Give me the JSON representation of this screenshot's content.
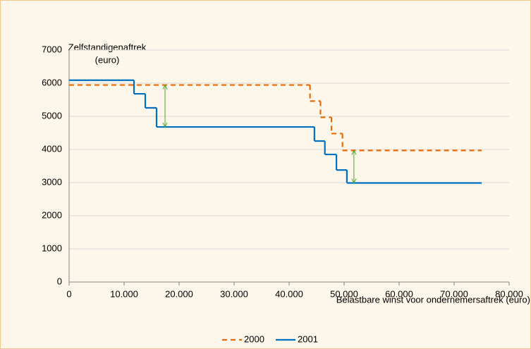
{
  "chart_data": {
    "type": "step",
    "ylabel": [
      "Zelfstandigenaftrek",
      "(euro)"
    ],
    "xlabel": "Belastbare winst voor ondernemersaftrek (euro)",
    "series": [
      {
        "name": "2000",
        "color": "#e46c0a",
        "dash": true,
        "x": [
          0,
          43800,
          45700,
          47700,
          49700,
          75000
        ],
        "values": [
          5945,
          5460,
          4970,
          4480,
          3970,
          3970
        ]
      },
      {
        "name": "2001",
        "color": "#0070c0",
        "dash": false,
        "x": [
          0,
          11800,
          13850,
          15900,
          44600,
          46500,
          48600,
          50500,
          75000
        ],
        "values": [
          6090,
          5680,
          5255,
          4680,
          4255,
          3850,
          3380,
          2990,
          2990
        ]
      }
    ],
    "xlim": [
      0,
      80000
    ],
    "xticks": [
      0,
      {
        "value": 10000,
        "label": "10.000"
      },
      {
        "value": 20000,
        "label": "20.000"
      },
      {
        "value": 30000,
        "label": "30.000"
      },
      {
        "value": 40000,
        "label": "40.000"
      },
      {
        "value": 50000,
        "label": "50.000"
      },
      {
        "value": 60000,
        "label": "60.000"
      },
      {
        "value": 70000,
        "label": "70.000"
      },
      {
        "value": 80000,
        "label": "80.000"
      }
    ],
    "ylim": [
      0,
      7000
    ],
    "yticks": [
      0,
      1000,
      2000,
      3000,
      4000,
      5000,
      6000,
      7000
    ],
    "grid": true,
    "legend": "bottom"
  }
}
